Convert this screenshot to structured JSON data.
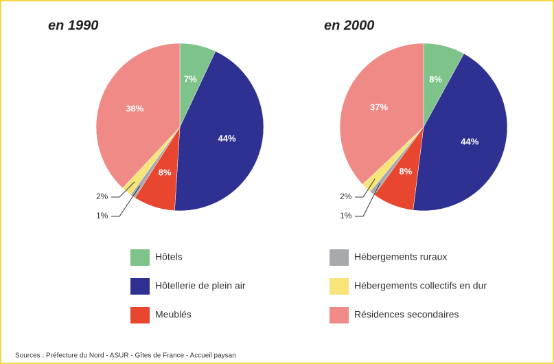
{
  "chart_data": [
    {
      "type": "pie",
      "title": "en 1990",
      "categories": [
        "Hôtels",
        "Hôtellerie de plein air",
        "Meublés",
        "Hébergements ruraux",
        "Hébergements collectifs en dur",
        "Résidences secondaires"
      ],
      "values": [
        7,
        44,
        8,
        1,
        2,
        38
      ],
      "value_labels": [
        "7%",
        "44%",
        "8%",
        "1%",
        "2%",
        "38%"
      ],
      "colors": [
        "#7dc38a",
        "#2e3192",
        "#e8462e",
        "#a7a9ac",
        "#f7e57a",
        "#f08a86"
      ]
    },
    {
      "type": "pie",
      "title": "en 2000",
      "categories": [
        "Hôtels",
        "Hôtellerie de plein air",
        "Meublés",
        "Hébergements ruraux",
        "Hébergements collectifs en dur",
        "Résidences secondaires"
      ],
      "values": [
        8,
        44,
        8,
        1,
        2,
        37
      ],
      "value_labels": [
        "8%",
        "44%",
        "8%",
        "1%",
        "2%",
        "37%"
      ],
      "colors": [
        "#7dc38a",
        "#2e3192",
        "#e8462e",
        "#a7a9ac",
        "#f7e57a",
        "#f08a86"
      ]
    }
  ],
  "source": "Sources : Préfecture du Nord - ASUR - Gîtes de France - Accueil paysan"
}
